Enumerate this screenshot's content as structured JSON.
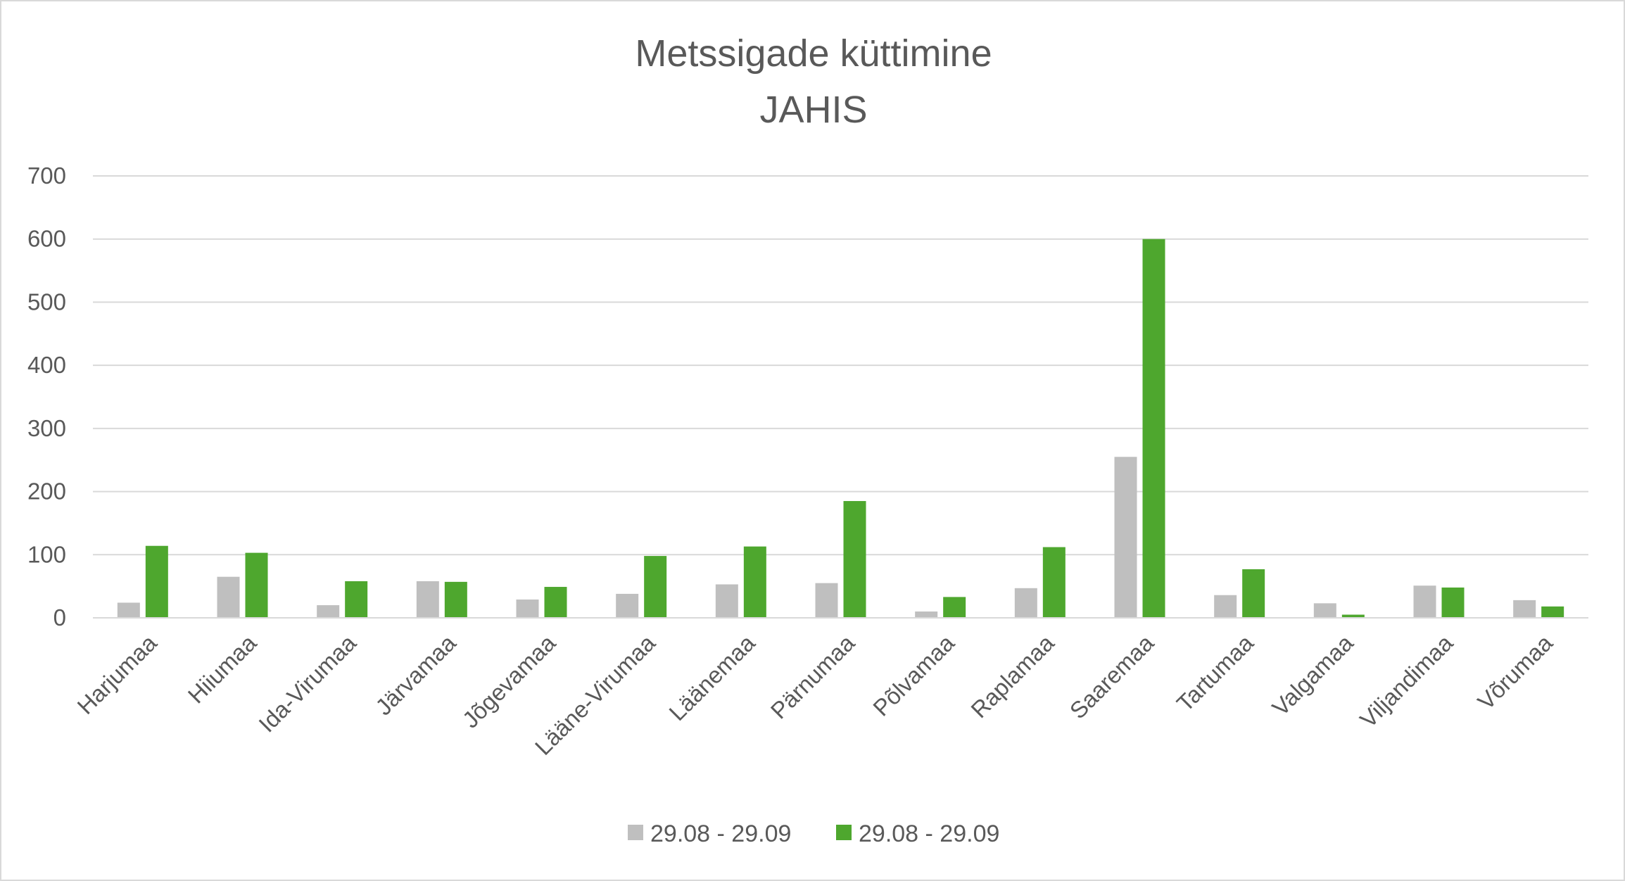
{
  "chart_data": {
    "type": "bar",
    "title": "Metssigade küttimine",
    "subtitle": "JAHIS",
    "xlabel": "",
    "ylabel": "",
    "ylim": [
      0,
      700
    ],
    "yticks": [
      0,
      100,
      200,
      300,
      400,
      500,
      600,
      700
    ],
    "grid": true,
    "legend_position": "bottom",
    "categories": [
      "Harjumaa",
      "Hiiumaa",
      "Ida-Virumaa",
      "Järvamaa",
      "Jõgevamaa",
      "Lääne-Virumaa",
      "Läänemaa",
      "Pärnumaa",
      "Põlvamaa",
      "Raplamaa",
      "Saaremaa",
      "Tartumaa",
      "Valgamaa",
      "Viljandimaa",
      "Võrumaa"
    ],
    "series": [
      {
        "name": "29.08 - 29.09",
        "color": "#bfbfbf",
        "values": [
          24,
          65,
          20,
          58,
          29,
          38,
          53,
          55,
          10,
          47,
          255,
          36,
          23,
          51,
          28
        ]
      },
      {
        "name": "29.08 - 29.09",
        "color": "#4ea72e",
        "values": [
          114,
          103,
          58,
          57,
          49,
          98,
          113,
          185,
          33,
          112,
          600,
          77,
          5,
          48,
          18
        ]
      }
    ]
  }
}
